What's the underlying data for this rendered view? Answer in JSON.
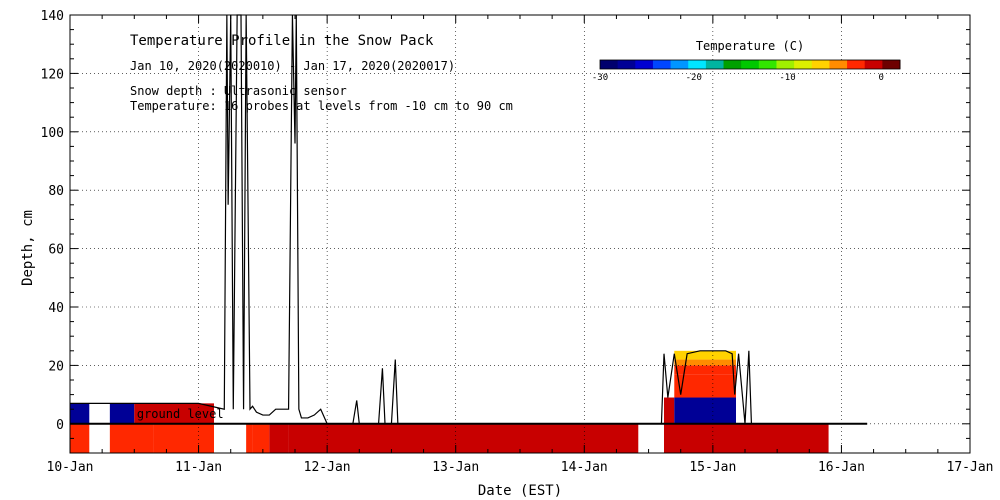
{
  "chart_data": {
    "type": "heatmap",
    "title": "Temperature Profile in the Snow Pack",
    "subtitle": "Jan 10, 2020(2020010) - Jan 17, 2020(2020017)",
    "notes": [
      "Snow depth : Ultrasonic sensor",
      "Temperature: 16 probes at levels from -10 cm to 90 cm"
    ],
    "xlabel": "Date (EST)",
    "ylabel": "Depth, cm",
    "x_ticks": [
      "10-Jan",
      "11-Jan",
      "12-Jan",
      "13-Jan",
      "14-Jan",
      "15-Jan",
      "16-Jan",
      "17-Jan"
    ],
    "y_ticks": [
      0,
      20,
      40,
      60,
      80,
      100,
      120,
      140
    ],
    "xlim": [
      0,
      7
    ],
    "ylim": [
      -10,
      140
    ],
    "grid": true,
    "ground_label": "ground level",
    "colorbar": {
      "title": "Temperature (C)",
      "ticks": [
        -30,
        -20,
        -10,
        0
      ],
      "range": [
        -30,
        2
      ],
      "colors": [
        "#00006e",
        "#000096",
        "#0000d2",
        "#0046ff",
        "#0096ff",
        "#00e6ff",
        "#00b4a0",
        "#00a000",
        "#00c800",
        "#32e600",
        "#a0f000",
        "#dcf000",
        "#ffd200",
        "#ff8c00",
        "#ff2800",
        "#c80000",
        "#6e0000"
      ]
    },
    "temperature_cells": [
      {
        "x": [
          0.0,
          0.15
        ],
        "y": [
          0,
          7
        ],
        "temp": -28
      },
      {
        "x": [
          0.15,
          0.31
        ],
        "y": [
          0,
          7
        ],
        "temp": null
      },
      {
        "x": [
          0.31,
          0.5
        ],
        "y": [
          0,
          7
        ],
        "temp": -28
      },
      {
        "x": [
          0.5,
          1.12
        ],
        "y": [
          0,
          7
        ],
        "temp": -1
      },
      {
        "x": [
          0.0,
          0.15
        ],
        "y": [
          -10,
          0
        ],
        "temp": -3
      },
      {
        "x": [
          0.31,
          0.65
        ],
        "y": [
          -10,
          0
        ],
        "temp": -3
      },
      {
        "x": [
          0.65,
          1.12
        ],
        "y": [
          -10,
          0
        ],
        "temp": -3.5
      },
      {
        "x": [
          1.37,
          1.42
        ],
        "y": [
          -10,
          0
        ],
        "temp": -3
      },
      {
        "x": [
          1.42,
          1.55
        ],
        "y": [
          -10,
          0
        ],
        "temp": -2
      },
      {
        "x": [
          1.55,
          1.7
        ],
        "y": [
          -10,
          0
        ],
        "temp": -1.5
      },
      {
        "x": [
          1.7,
          4.42
        ],
        "y": [
          -10,
          0
        ],
        "temp": -1
      },
      {
        "x": [
          4.62,
          5.9
        ],
        "y": [
          -10,
          0
        ],
        "temp": -1
      },
      {
        "x": [
          4.62,
          4.7
        ],
        "y": [
          0,
          9
        ],
        "temp": -1
      },
      {
        "x": [
          4.7,
          5.18
        ],
        "y": [
          0,
          9
        ],
        "temp": -28
      },
      {
        "x": [
          4.7,
          5.18
        ],
        "y": [
          9,
          17
        ],
        "temp": -2
      },
      {
        "x": [
          4.7,
          5.18
        ],
        "y": [
          17,
          20
        ],
        "temp": -3
      },
      {
        "x": [
          4.7,
          5.18
        ],
        "y": [
          20,
          22
        ],
        "temp": -4
      },
      {
        "x": [
          4.7,
          5.18
        ],
        "y": [
          22,
          25
        ],
        "temp": -6
      }
    ],
    "snow_depth": {
      "x": [
        0.0,
        0.3,
        0.6,
        1.0,
        1.2,
        1.22,
        1.23,
        1.25,
        1.27,
        1.3,
        1.33,
        1.35,
        1.37,
        1.38,
        1.4,
        1.42,
        1.45,
        1.5,
        1.55,
        1.6,
        1.7,
        1.73,
        1.75,
        1.76,
        1.78,
        1.8,
        1.85,
        1.9,
        1.95,
        2.0,
        2.05,
        2.1,
        2.2,
        2.23,
        2.25,
        2.3,
        2.4,
        2.43,
        2.45,
        2.5,
        2.53,
        2.55,
        2.6,
        3.0,
        4.0,
        4.6,
        4.62,
        4.65,
        4.7,
        4.75,
        4.8,
        4.9,
        5.0,
        5.1,
        5.15,
        5.17,
        5.2,
        5.25,
        5.28,
        5.3,
        5.35,
        5.5,
        6.2
      ],
      "y": [
        7,
        7,
        7,
        7,
        5,
        140,
        75,
        140,
        5,
        140,
        140,
        5,
        140,
        96,
        5,
        6,
        4,
        3,
        3,
        5,
        5,
        140,
        96,
        140,
        5,
        2,
        2,
        3,
        5,
        0,
        0,
        0,
        0,
        8,
        0,
        0,
        0,
        19,
        0,
        0,
        22,
        0,
        0,
        0,
        0,
        0,
        24,
        9,
        24,
        10,
        24,
        25,
        25,
        25,
        24,
        10,
        24,
        0,
        25,
        0,
        0,
        0,
        0
      ]
    }
  }
}
